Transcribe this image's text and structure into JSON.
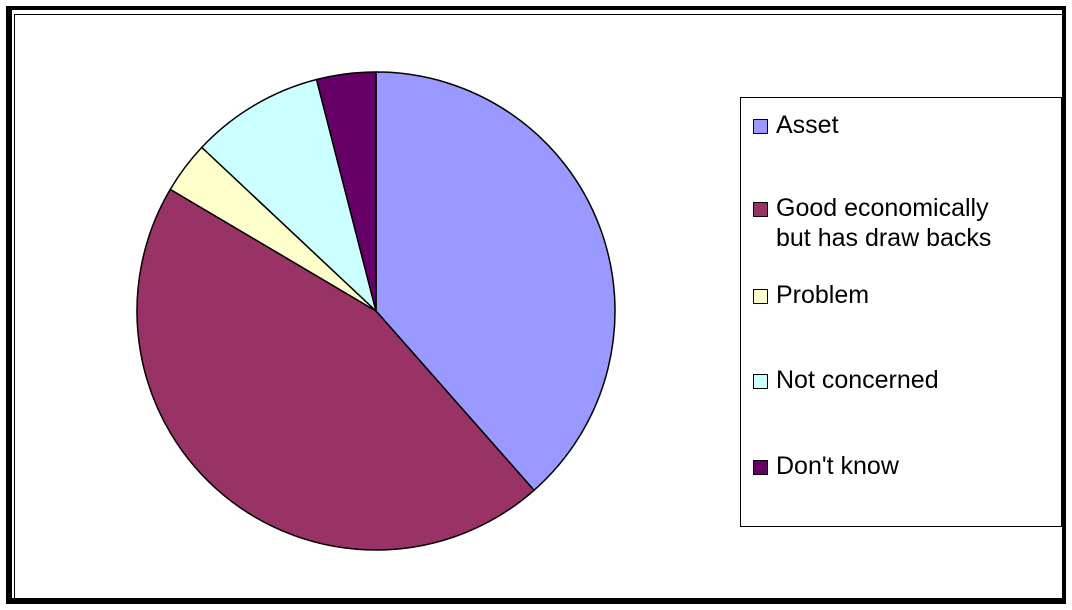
{
  "chart_data": {
    "type": "pie",
    "categories": [
      "Asset",
      "Good economically\nbut has draw backs",
      "Problem",
      "Not concerned",
      "Don't know"
    ],
    "values": [
      38.5,
      45,
      3.5,
      9,
      4
    ],
    "colors": [
      "#9999ff",
      "#993366",
      "#ffffcc",
      "#ccffff",
      "#660066"
    ],
    "start_angle_deg": 0,
    "direction": "clockwise",
    "legend_position": "right",
    "title": ""
  }
}
